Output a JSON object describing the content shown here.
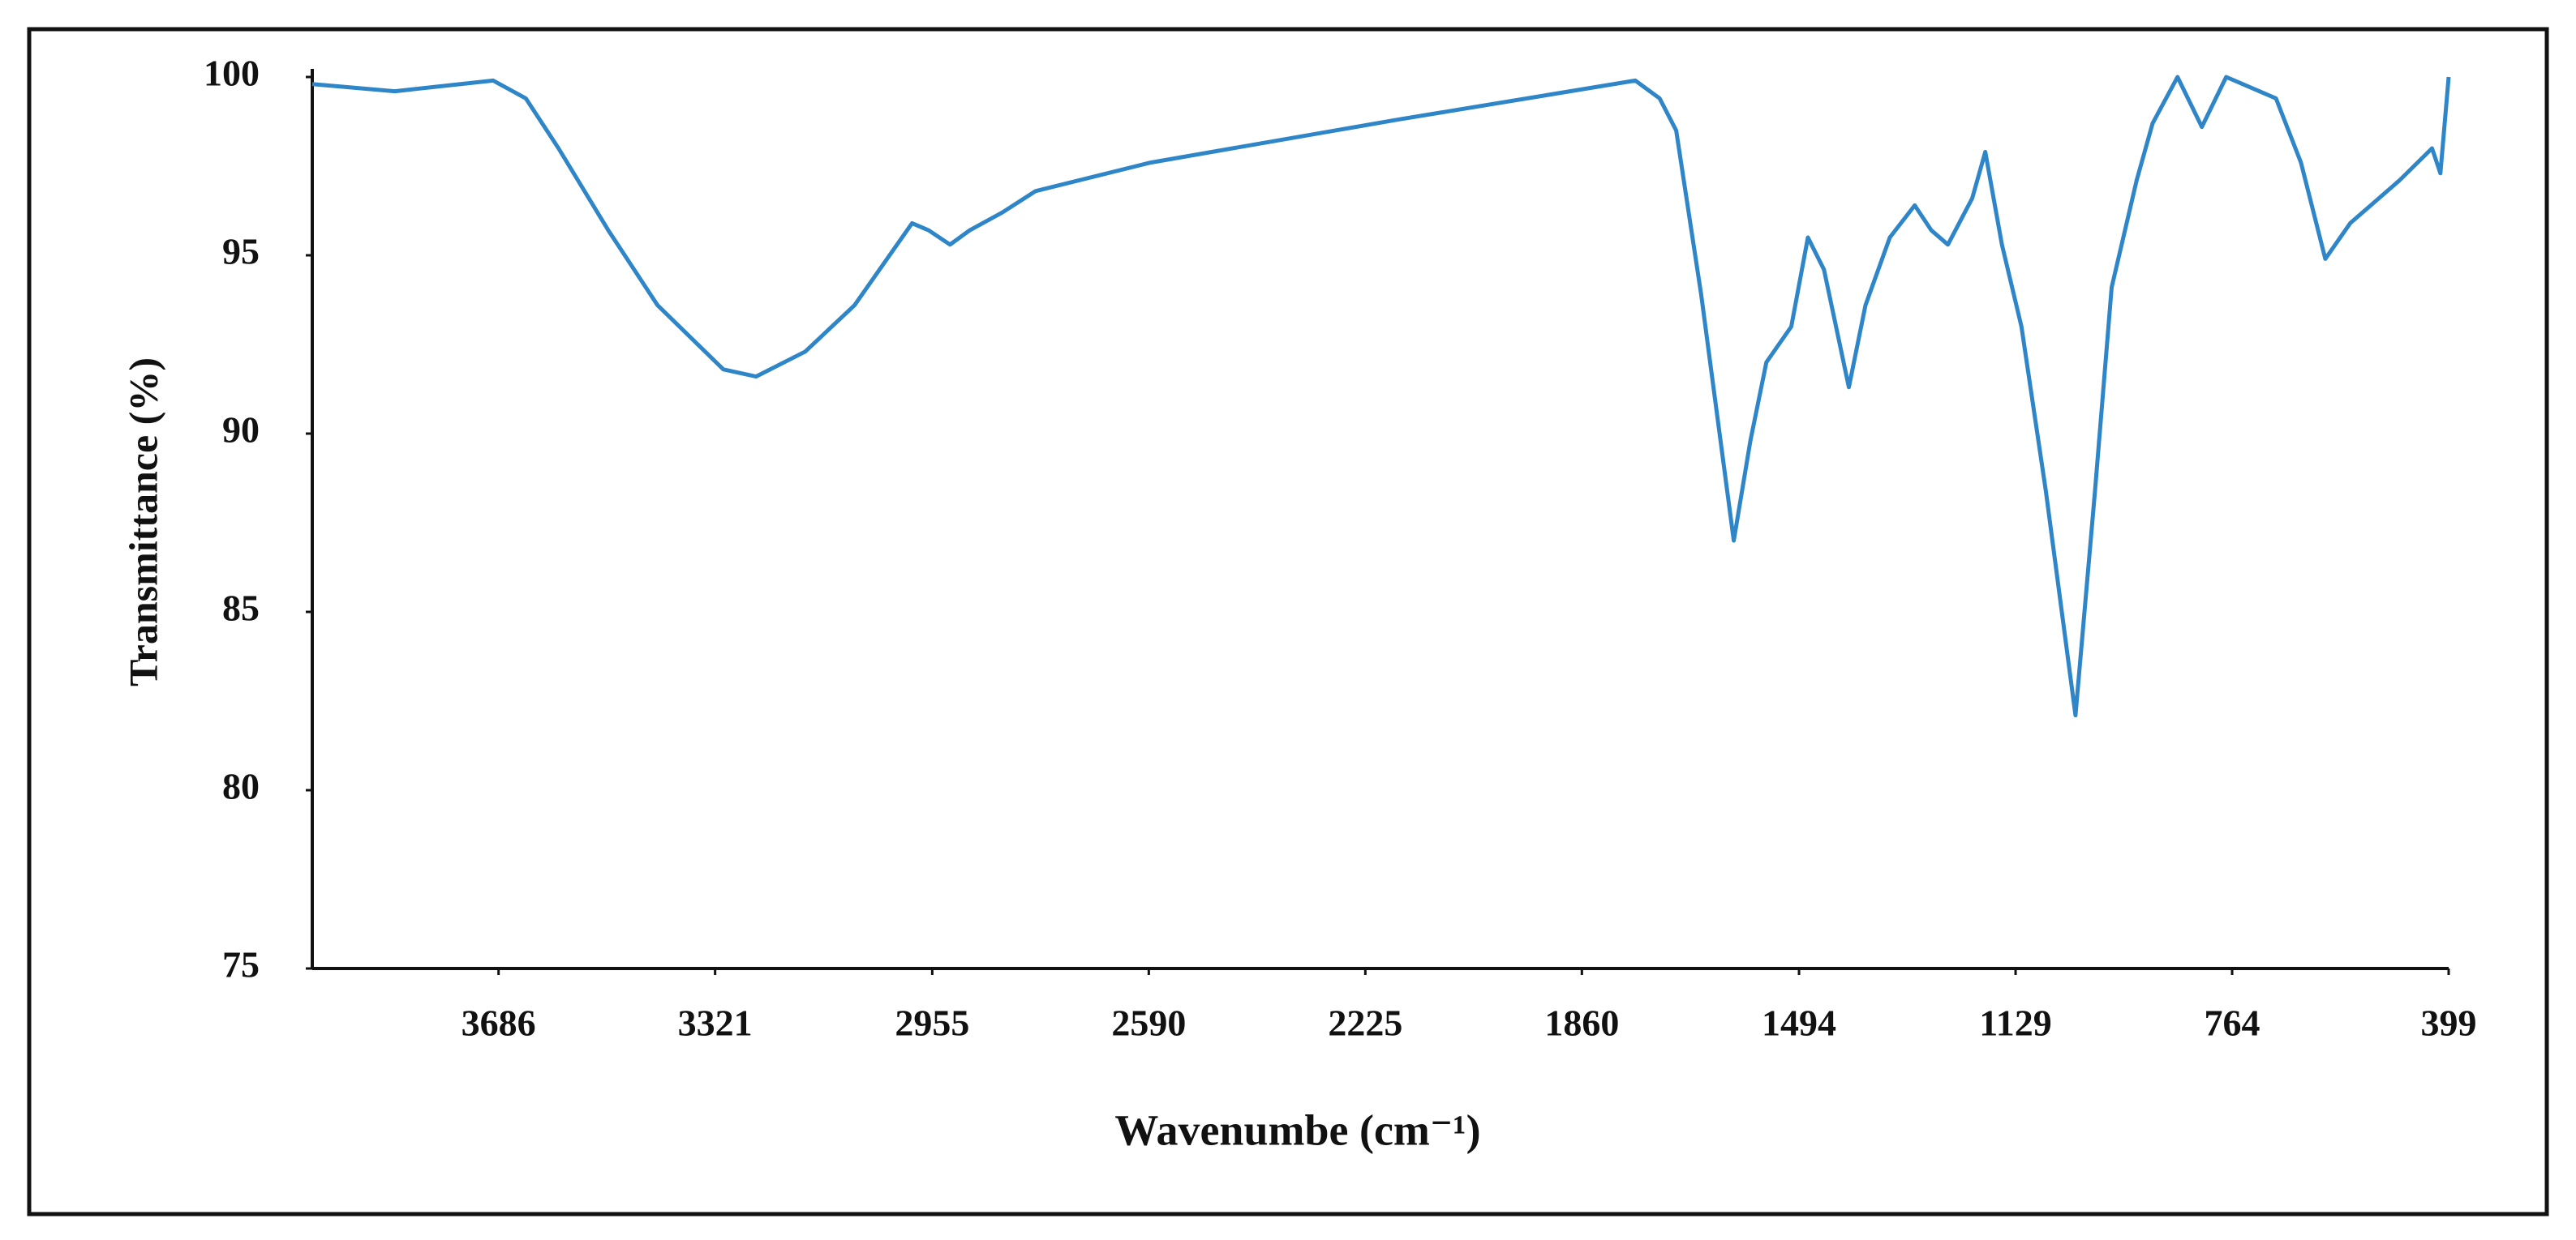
{
  "chart_data": {
    "type": "line",
    "x_label": "Wavenumbe (cm⁻¹)",
    "y_label": "Transmittance (%)",
    "x": [
      4000,
      3861,
      3695,
      3640,
      3585,
      3501,
      3418,
      3307,
      3252,
      3169,
      3086,
      2989,
      2961,
      2925,
      2892,
      2837,
      2781,
      2587,
      2172,
      1770,
      1729,
      1701,
      1659,
      1604,
      1576,
      1549,
      1507,
      1479,
      1452,
      1410,
      1382,
      1341,
      1299,
      1271,
      1243,
      1202,
      1180,
      1152,
      1119,
      1078,
      1028,
      995,
      967,
      925,
      898,
      856,
      815,
      774,
      690,
      648,
      607,
      565,
      482,
      427,
      413,
      399
    ],
    "series": [
      {
        "color": "#2e86c9",
        "values": [
          99.8,
          99.6,
          99.9,
          99.4,
          98.0,
          95.7,
          93.6,
          91.8,
          91.6,
          92.3,
          93.6,
          95.9,
          95.7,
          95.3,
          95.7,
          96.2,
          96.8,
          97.6,
          98.8,
          99.9,
          99.4,
          98.5,
          93.9,
          87.0,
          89.8,
          92.0,
          93.0,
          95.5,
          94.6,
          91.3,
          93.6,
          95.5,
          96.4,
          95.7,
          95.3,
          96.6,
          97.9,
          95.3,
          93.0,
          88.4,
          82.1,
          88.4,
          94.1,
          97.1,
          98.7,
          100,
          98.6,
          100,
          99.4,
          97.6,
          94.9,
          95.9,
          97.1,
          98.0,
          97.3,
          100
        ]
      }
    ],
    "xlim": [
      4000,
      399
    ],
    "xticks": [
      3686,
      3321,
      2955,
      2590,
      2225,
      1860,
      1494,
      1129,
      764,
      399
    ],
    "ylim": [
      75,
      100
    ],
    "yticks": [
      75,
      80,
      85,
      90,
      95,
      100
    ],
    "grid": false
  }
}
